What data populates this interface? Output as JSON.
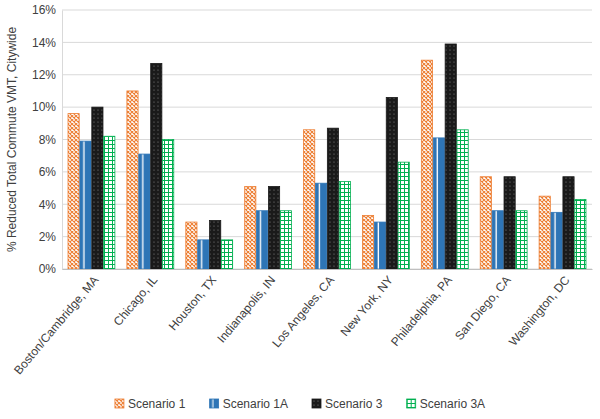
{
  "chart_data": {
    "type": "bar",
    "y_label": "% Reduced Total Commute VMT, Citywide",
    "categories": [
      "Boston/Cambridge, MA",
      "Chicago, IL",
      "Houston, TX",
      "Indianapolis, IN",
      "Los Angeles, CA",
      "New York, NY",
      "Philadelphia, PA",
      "San Diego, CA",
      "Washington, DC"
    ],
    "series": [
      {
        "name": "Scenario 1",
        "color": "#ed7d31",
        "values": [
          9.6,
          11.0,
          2.9,
          5.1,
          8.6,
          3.3,
          12.9,
          5.7,
          4.5
        ]
      },
      {
        "name": "Scenario 1A",
        "color": "#2e75b6",
        "values": [
          7.9,
          7.1,
          1.8,
          3.6,
          5.3,
          2.9,
          8.1,
          3.6,
          3.5
        ]
      },
      {
        "name": "Scenario 3",
        "color": "#1a1a1a",
        "values": [
          10.0,
          12.7,
          3.0,
          5.1,
          8.7,
          10.6,
          13.9,
          5.7,
          5.7
        ]
      },
      {
        "name": "Scenario 3A",
        "color": "#00b050",
        "values": [
          8.2,
          8.0,
          1.8,
          3.6,
          5.4,
          6.6,
          8.6,
          3.6,
          4.3
        ]
      }
    ],
    "ylim": [
      0,
      16
    ],
    "yticks": [
      {
        "value": 0,
        "label": "0%"
      },
      {
        "value": 2,
        "label": "2%"
      },
      {
        "value": 4,
        "label": "4%"
      },
      {
        "value": 6,
        "label": "6%"
      },
      {
        "value": 8,
        "label": "8%"
      },
      {
        "value": 10,
        "label": "10%"
      },
      {
        "value": 12,
        "label": "12%"
      },
      {
        "value": 14,
        "label": "14%"
      },
      {
        "value": 16,
        "label": "16%"
      }
    ],
    "grid": true,
    "legend": "bottom"
  }
}
